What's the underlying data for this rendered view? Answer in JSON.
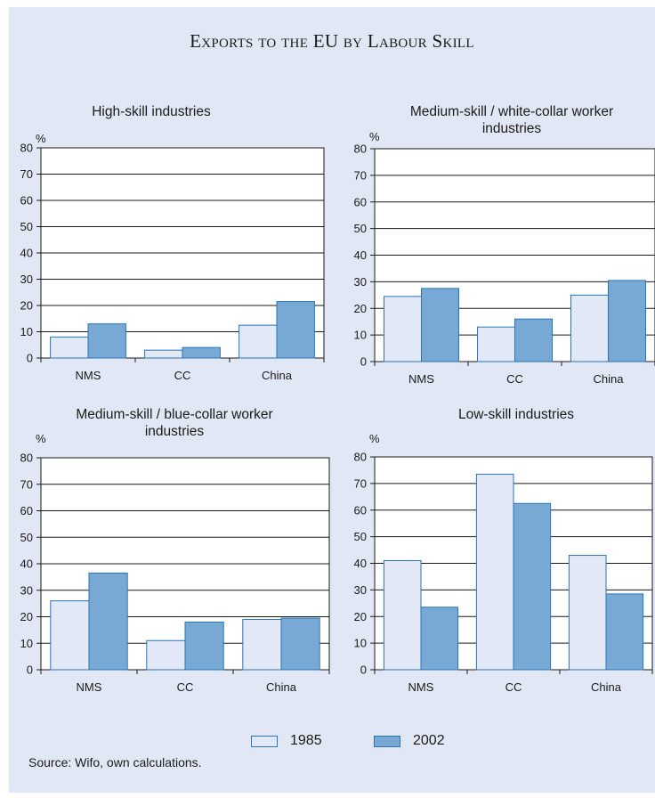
{
  "title": "Exports to the EU by Labour Skill",
  "source": "Source: Wifo, own calculations.",
  "legend": [
    {
      "name": "1985",
      "color": "#e2e8f6"
    },
    {
      "name": "2002",
      "color": "#78a9d4"
    }
  ],
  "chart_data": [
    {
      "type": "bar",
      "title": "High-skill industries",
      "ylabel": "%",
      "categories": [
        "NMS",
        "CC",
        "China"
      ],
      "ylim": [
        0,
        80
      ],
      "yticks": [
        0,
        10,
        20,
        30,
        40,
        50,
        60,
        70,
        80
      ],
      "series": [
        {
          "name": "1985",
          "values": [
            8,
            3,
            12.5
          ]
        },
        {
          "name": "2002",
          "values": [
            13,
            4,
            21.5
          ]
        }
      ]
    },
    {
      "type": "bar",
      "title": "Medium-skill / white-collar worker industries",
      "ylabel": "%",
      "categories": [
        "NMS",
        "CC",
        "China"
      ],
      "ylim": [
        0,
        80
      ],
      "yticks": [
        0,
        10,
        20,
        30,
        40,
        50,
        60,
        70,
        80
      ],
      "series": [
        {
          "name": "1985",
          "values": [
            24.5,
            13,
            25
          ]
        },
        {
          "name": "2002",
          "values": [
            27.5,
            16,
            30.5
          ]
        }
      ]
    },
    {
      "type": "bar",
      "title": "Medium-skill / blue-collar worker industries",
      "ylabel": "%",
      "categories": [
        "NMS",
        "CC",
        "China"
      ],
      "ylim": [
        0,
        80
      ],
      "yticks": [
        0,
        10,
        20,
        30,
        40,
        50,
        60,
        70,
        80
      ],
      "series": [
        {
          "name": "1985",
          "values": [
            26,
            11,
            19
          ]
        },
        {
          "name": "2002",
          "values": [
            36.5,
            18,
            19.5
          ]
        }
      ]
    },
    {
      "type": "bar",
      "title": "Low-skill industries",
      "ylabel": "%",
      "categories": [
        "NMS",
        "CC",
        "China"
      ],
      "ylim": [
        0,
        80
      ],
      "yticks": [
        0,
        10,
        20,
        30,
        40,
        50,
        60,
        70,
        80
      ],
      "series": [
        {
          "name": "1985",
          "values": [
            41,
            73.5,
            43
          ]
        },
        {
          "name": "2002",
          "values": [
            23.5,
            62.5,
            28.5
          ]
        }
      ]
    }
  ]
}
